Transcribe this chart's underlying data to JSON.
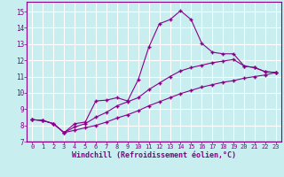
{
  "xlabel": "Windchill (Refroidissement éolien,°C)",
  "bg_color": "#c8eef0",
  "line_color": "#880088",
  "grid_color": "#ffffff",
  "xlim": [
    -0.5,
    23.5
  ],
  "ylim": [
    7,
    15.6
  ],
  "xticks": [
    0,
    1,
    2,
    3,
    4,
    5,
    6,
    7,
    8,
    9,
    10,
    11,
    12,
    13,
    14,
    15,
    16,
    17,
    18,
    19,
    20,
    21,
    22,
    23
  ],
  "yticks": [
    7,
    8,
    9,
    10,
    11,
    12,
    13,
    14,
    15
  ],
  "curve1_x": [
    0,
    1,
    2,
    3,
    4,
    5,
    6,
    7,
    8,
    9,
    10,
    11,
    12,
    13,
    14,
    15,
    16,
    17,
    18,
    19,
    20,
    21,
    22,
    23
  ],
  "curve1_y": [
    8.35,
    8.3,
    8.1,
    7.55,
    8.1,
    8.2,
    9.5,
    9.55,
    9.7,
    9.5,
    10.8,
    12.8,
    14.25,
    14.5,
    15.05,
    14.5,
    13.05,
    12.5,
    12.4,
    12.4,
    11.65,
    11.55,
    11.3,
    11.25
  ],
  "curve2_x": [
    0,
    1,
    2,
    3,
    4,
    5,
    6,
    7,
    8,
    9,
    10,
    11,
    12,
    13,
    14,
    15,
    16,
    17,
    18,
    19,
    20,
    21,
    22,
    23
  ],
  "curve2_y": [
    8.35,
    8.3,
    8.1,
    7.55,
    7.9,
    8.1,
    8.5,
    8.8,
    9.2,
    9.45,
    9.7,
    10.2,
    10.6,
    11.0,
    11.35,
    11.55,
    11.7,
    11.85,
    11.95,
    12.05,
    11.65,
    11.55,
    11.3,
    11.25
  ],
  "curve3_x": [
    0,
    1,
    2,
    3,
    4,
    5,
    6,
    7,
    8,
    9,
    10,
    11,
    12,
    13,
    14,
    15,
    16,
    17,
    18,
    19,
    20,
    21,
    22,
    23
  ],
  "curve3_y": [
    8.35,
    8.3,
    8.1,
    7.55,
    7.7,
    7.85,
    8.0,
    8.2,
    8.45,
    8.65,
    8.9,
    9.2,
    9.45,
    9.7,
    9.95,
    10.15,
    10.35,
    10.5,
    10.65,
    10.75,
    10.9,
    11.0,
    11.1,
    11.25
  ]
}
